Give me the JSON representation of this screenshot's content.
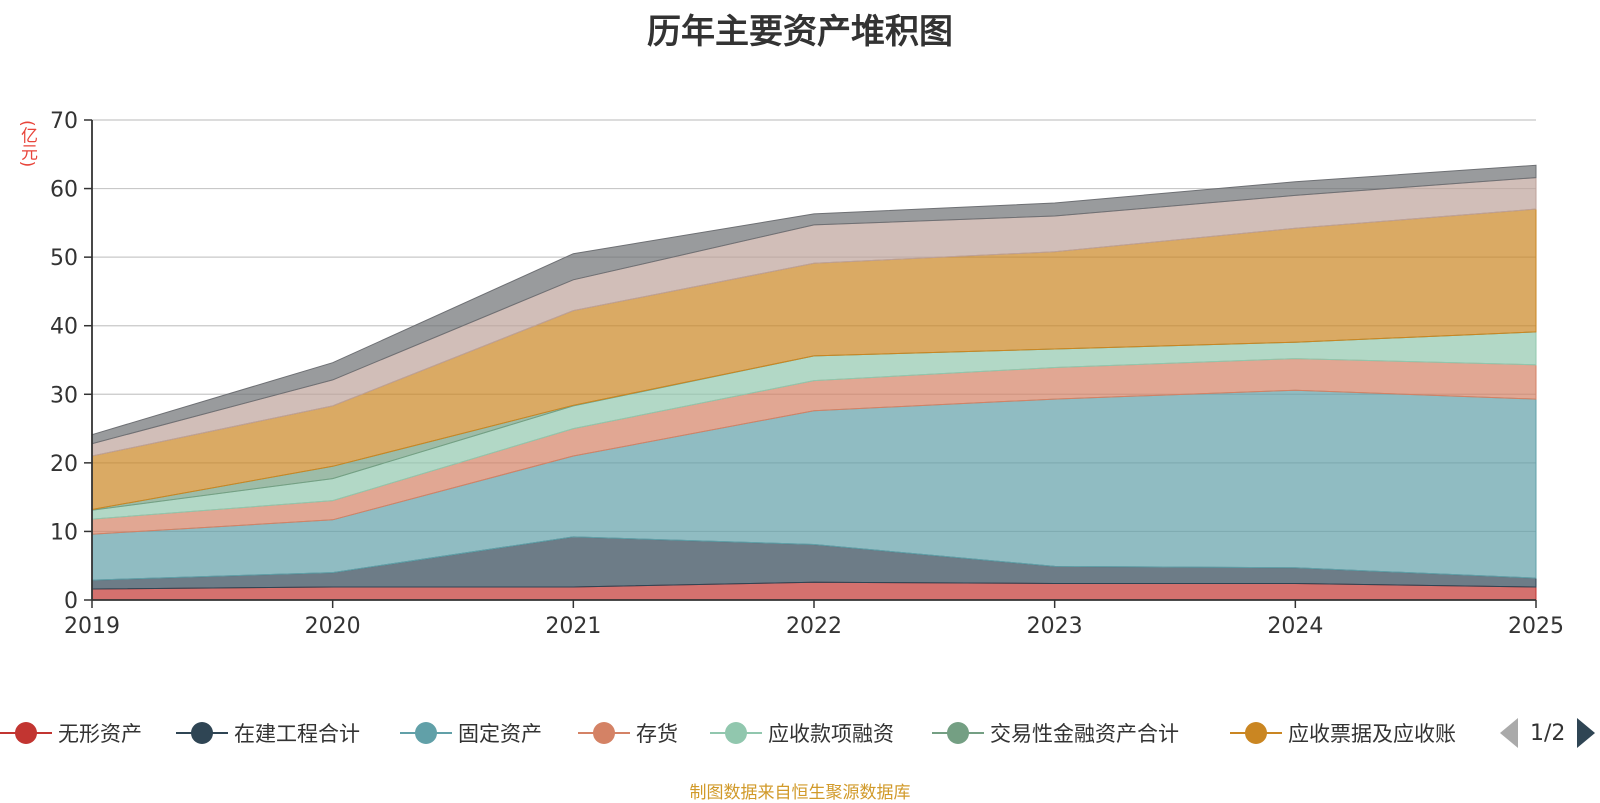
{
  "chart_data": {
    "type": "area",
    "stacked": true,
    "title": "历年主要资产堆积图",
    "ylabel": "(亿元)",
    "xlabel": "",
    "ylim": [
      0,
      70
    ],
    "yticks": [
      0,
      10,
      20,
      30,
      40,
      50,
      60,
      70
    ],
    "categories": [
      "2019",
      "2020",
      "2021",
      "2022",
      "2023",
      "2024",
      "2025"
    ],
    "series": [
      {
        "name": "无形资产",
        "color": "#c23531",
        "values": [
          1.6,
          1.9,
          1.9,
          2.6,
          2.4,
          2.4,
          1.9
        ]
      },
      {
        "name": "在建工程合计",
        "color": "#2f4554",
        "values": [
          1.3,
          2.1,
          7.3,
          5.5,
          2.5,
          2.3,
          1.3
        ]
      },
      {
        "name": "固定资产",
        "color": "#61a0a8",
        "values": [
          6.7,
          7.7,
          11.8,
          19.5,
          24.4,
          25.9,
          26.1
        ]
      },
      {
        "name": "存货",
        "color": "#d48265",
        "values": [
          2.2,
          2.8,
          4.0,
          4.4,
          4.6,
          4.6,
          5.0
        ]
      },
      {
        "name": "应收款项融资",
        "color": "#91c7ae",
        "values": [
          1.3,
          3.2,
          3.3,
          3.6,
          2.7,
          2.4,
          4.8
        ]
      },
      {
        "name": "交易性金融资产合计",
        "color": "#749f83",
        "values": [
          0.1,
          1.8,
          0.1,
          0.0,
          0.0,
          0.0,
          0.0
        ]
      },
      {
        "name": "应收票据及应收账",
        "color": "#ca8622",
        "values": [
          7.8,
          8.8,
          13.8,
          13.5,
          14.2,
          16.6,
          17.9
        ]
      },
      {
        "name": "",
        "color": "#bda29a",
        "values": [
          1.8,
          3.8,
          4.5,
          5.6,
          5.2,
          4.8,
          4.6
        ]
      },
      {
        "name": "",
        "color": "#6e7074",
        "values": [
          1.3,
          2.5,
          3.8,
          1.6,
          1.9,
          2.0,
          1.8
        ]
      }
    ]
  },
  "legend": {
    "items": [
      {
        "label": "无形资产",
        "color": "#c23531"
      },
      {
        "label": "在建工程合计",
        "color": "#2f4554"
      },
      {
        "label": "固定资产",
        "color": "#61a0a8"
      },
      {
        "label": "存货",
        "color": "#d48265"
      },
      {
        "label": "应收款项融资",
        "color": "#91c7ae"
      },
      {
        "label": "交易性金融资产合计",
        "color": "#749f83"
      },
      {
        "label": "应收票据及应收账",
        "color": "#ca8622"
      }
    ],
    "page_text": "1/2"
  },
  "footer": {
    "source": "制图数据来自恒生聚源数据库"
  }
}
